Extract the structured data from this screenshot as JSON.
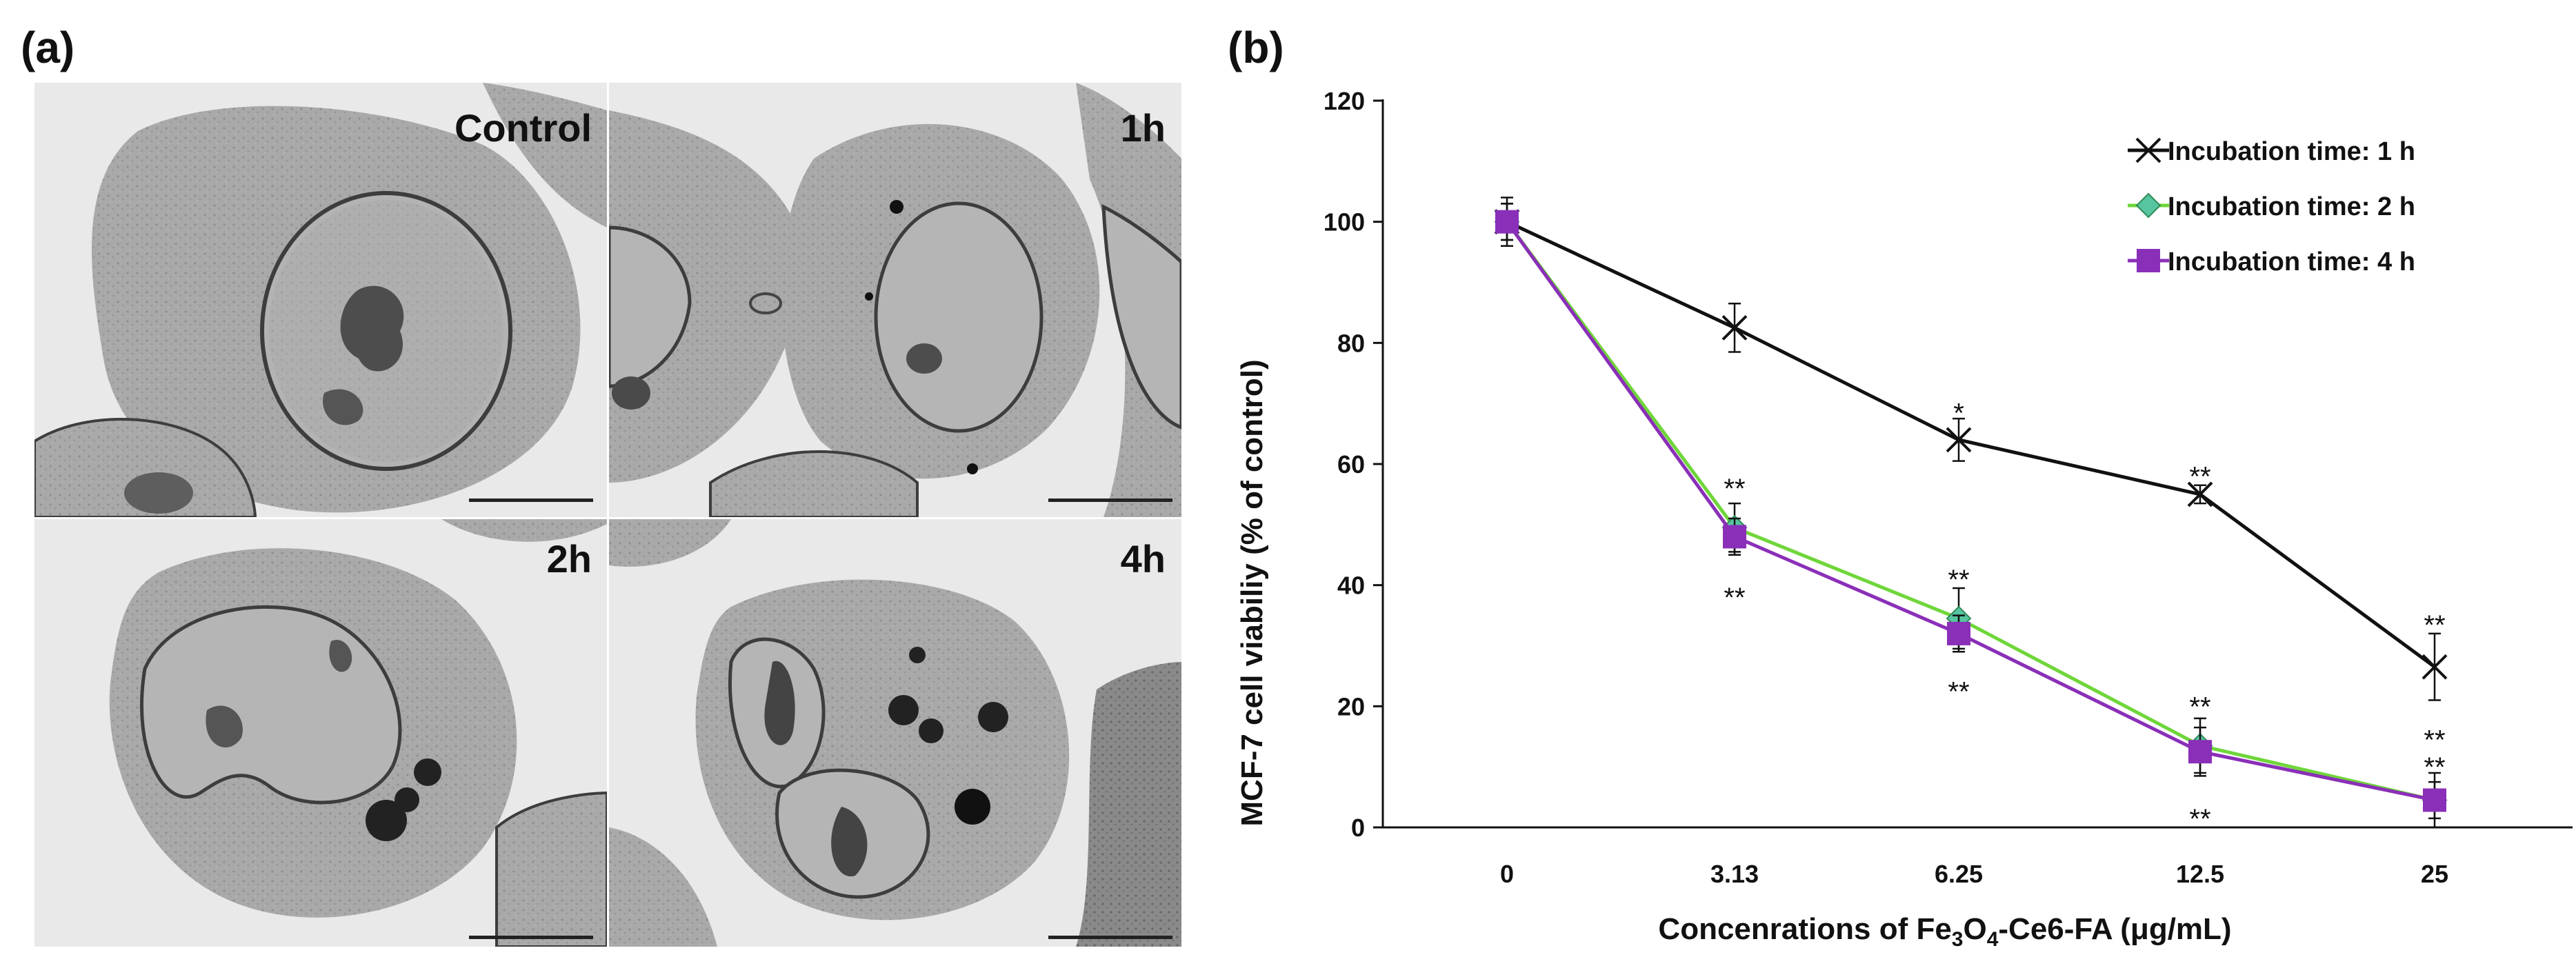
{
  "panel_a": {
    "label": "(a)",
    "images": [
      {
        "caption": "Control"
      },
      {
        "caption": "1h"
      },
      {
        "caption": "2h"
      },
      {
        "caption": "4h"
      }
    ]
  },
  "panel_b": {
    "label": "(b)"
  },
  "colors": {
    "series_1h": "#111111",
    "series_2h_line": "#6fd63a",
    "series_2h_marker": "#57c5a0",
    "series_4h": "#8a2fb8"
  },
  "chart_data": {
    "type": "line",
    "categories": [
      "0",
      "3.13",
      "6.25",
      "12.5",
      "25"
    ],
    "xlabel_prefix": "Concenrations of  Fe",
    "xlabel_sub1": "3",
    "xlabel_mid": "O",
    "xlabel_sub2": "4",
    "xlabel_suffix": "-Ce6-FA (μg/mL)",
    "ylabel": "MCF-7 cell viabiliy (% of control)",
    "ylim": [
      0,
      120
    ],
    "yticks": [
      "0",
      "20",
      "40",
      "60",
      "80",
      "100",
      "120"
    ],
    "legend_position": "top-right",
    "series": [
      {
        "name": "Incubation time: 1 h",
        "values": [
          100,
          82.5,
          64,
          55,
          26.5
        ],
        "errors": [
          4,
          4,
          3.5,
          1.5,
          5.5
        ],
        "marker": "x"
      },
      {
        "name": "Incubation time: 2 h",
        "values": [
          100,
          49.5,
          34.5,
          13.5,
          4.5
        ],
        "errors": [
          3,
          4,
          5,
          4.5,
          4.5
        ],
        "marker": "diamond"
      },
      {
        "name": "Incubation time: 4 h",
        "values": [
          100,
          48,
          32,
          12.5,
          4.5
        ],
        "errors": [
          3,
          3,
          3,
          4,
          3
        ],
        "marker": "square"
      }
    ],
    "annotations": [
      {
        "x": "6.25",
        "y": 68.5,
        "text": "*"
      },
      {
        "x": "12.5",
        "y": 58,
        "text": "**"
      },
      {
        "x": "25",
        "y": 33.5,
        "text": "**"
      },
      {
        "x": "3.13",
        "y": 56,
        "text": "**"
      },
      {
        "x": "3.13",
        "y": 38,
        "text": "**"
      },
      {
        "x": "6.25",
        "y": 41,
        "text": "**"
      },
      {
        "x": "6.25",
        "y": 22.5,
        "text": "**"
      },
      {
        "x": "12.5",
        "y": 20,
        "text": "**"
      },
      {
        "x": "12.5",
        "y": 1.5,
        "text": "**"
      },
      {
        "x": "25",
        "y": 14.5,
        "text": "**"
      },
      {
        "x": "25",
        "y": 10,
        "text": "**"
      }
    ]
  }
}
